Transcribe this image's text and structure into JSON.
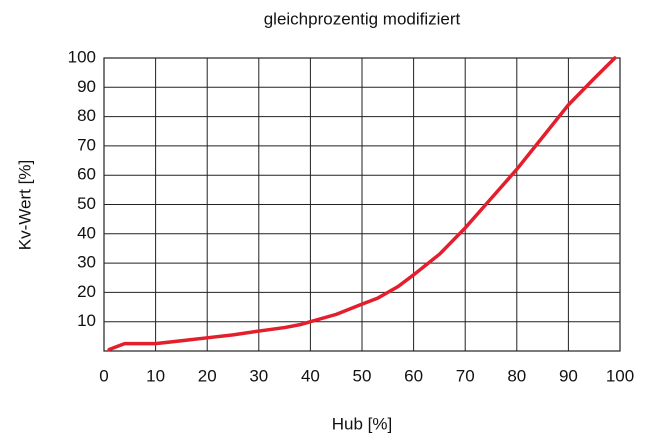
{
  "chart_data": {
    "type": "line",
    "title": "gleichprozentig modifiziert",
    "xlabel": "Hub [%]",
    "ylabel": "Kv-Wert [%]",
    "x": [
      1,
      4,
      6,
      10,
      15,
      20,
      25,
      30,
      35,
      38,
      40,
      45,
      50,
      53,
      57,
      60,
      65,
      70,
      75,
      80,
      85,
      90,
      95,
      99
    ],
    "series": [
      {
        "name": "gleichprozentig modifiziert",
        "color": "#e31e2d",
        "values": [
          0.5,
          2.5,
          2.5,
          2.5,
          3.5,
          4.5,
          5.5,
          6.8,
          8,
          9,
          10,
          12.5,
          16,
          18,
          22,
          26,
          33,
          42,
          52,
          62,
          73,
          84,
          93,
          100
        ]
      }
    ],
    "xlim": [
      0,
      100
    ],
    "xticks": [
      0,
      10,
      20,
      30,
      40,
      50,
      60,
      70,
      80,
      90,
      100
    ],
    "ylim": [
      0,
      100
    ],
    "yticks": [
      10,
      20,
      30,
      40,
      50,
      60,
      70,
      80,
      90,
      100
    ],
    "grid": true
  }
}
